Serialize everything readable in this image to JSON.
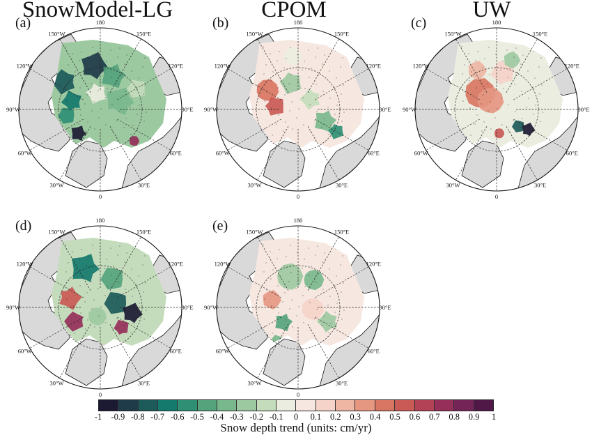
{
  "columns": [
    "SnowModel-LG",
    "CPOM",
    "UW"
  ],
  "panels": [
    {
      "label": "(a)",
      "product": "SnowModel-LG"
    },
    {
      "label": "(b)",
      "product": "CPOM"
    },
    {
      "label": "(c)",
      "product": "UW"
    },
    {
      "label": "(d)",
      "product": "SnowModel-LG"
    },
    {
      "label": "(e)",
      "product": "CPOM"
    }
  ],
  "longitude_labels": [
    "180",
    "150°E",
    "120°E",
    "90°E",
    "60°E",
    "30°E",
    "0",
    "30°W",
    "60°W",
    "90°W",
    "120°W",
    "150°W"
  ],
  "colorbar": {
    "title": "Snow depth trend (units: cm/yr)",
    "ticks": [
      "-1",
      "-0.9",
      "-0.8",
      "-0.7",
      "-0.6",
      "-0.5",
      "-0.4",
      "-0.3",
      "-0.2",
      "-0.1",
      "0",
      "0.1",
      "0.2",
      "0.3",
      "0.4",
      "0.5",
      "0.6",
      "0.7",
      "0.8",
      "0.9",
      "1"
    ],
    "colors": [
      "#1c1a33",
      "#1f3a48",
      "#1d5a5a",
      "#157a6e",
      "#2f8f74",
      "#55a37d",
      "#79b78d",
      "#9dc9a1",
      "#c4dcbc",
      "#ebede0",
      "#f6e8e0",
      "#f5d3c9",
      "#efb6a4",
      "#e59782",
      "#d97663",
      "#c95a55",
      "#b34257",
      "#962f5a",
      "#752457",
      "#4f1847"
    ]
  },
  "colors": {
    "land": "#d9d9d9",
    "ocean_no_data": "#ffffff",
    "coast": "#111111"
  }
}
